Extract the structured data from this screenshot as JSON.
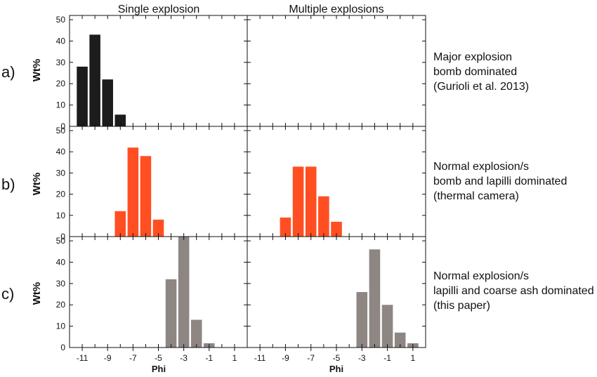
{
  "column_titles": [
    "Single explosion",
    "Multiple explosions"
  ],
  "row_labels": [
    "a)",
    "b)",
    "c)"
  ],
  "ylabel": "Wt%",
  "xlabel": "Phi",
  "descriptions": [
    [
      "Major explosion",
      "bomb dominated",
      "(Gurioli et al. 2013)"
    ],
    [
      "Normal explosion/s",
      "bomb and lapilli dominated",
      "(thermal camera)"
    ],
    [
      "Normal explosion/s",
      "lapilli and coarse ash dominated",
      "(this paper)"
    ]
  ],
  "chart_data": {
    "type": "bar",
    "xlim": [
      -12,
      2
    ],
    "ylim": [
      0,
      52
    ],
    "x_ticks": [
      -11,
      -9,
      -7,
      -5,
      -3,
      -1,
      1
    ],
    "y_ticks": [
      0,
      10,
      20,
      30,
      40,
      50
    ],
    "xlabel": "Phi",
    "ylabel": "Wt%",
    "colors": {
      "a": "#1c1c1c",
      "b": "#ff4f22",
      "c": "#8e8683"
    },
    "panels": [
      {
        "row": "a",
        "column": "Single explosion",
        "color": "#1c1c1c",
        "x": [
          -11,
          -10,
          -9,
          -8
        ],
        "values": [
          28,
          43,
          22,
          5.5
        ]
      },
      {
        "row": "a",
        "column": "Multiple explosions",
        "color": "#1c1c1c",
        "x": [],
        "values": []
      },
      {
        "row": "b",
        "column": "Single explosion",
        "color": "#ff4f22",
        "x": [
          -8,
          -7,
          -6,
          -5
        ],
        "values": [
          12,
          42,
          38,
          8
        ]
      },
      {
        "row": "b",
        "column": "Multiple explosions",
        "color": "#ff4f22",
        "x": [
          -9,
          -8,
          -7,
          -6,
          -5
        ],
        "values": [
          9,
          33,
          33,
          19,
          7
        ]
      },
      {
        "row": "c",
        "column": "Single explosion",
        "color": "#8e8683",
        "x": [
          -4,
          -3,
          -2,
          -1
        ],
        "values": [
          32,
          54,
          13,
          2
        ]
      },
      {
        "row": "c",
        "column": "Multiple explosions",
        "color": "#8e8683",
        "x": [
          -3,
          -2,
          -1,
          0,
          1
        ],
        "values": [
          26,
          46,
          20,
          7,
          2
        ]
      }
    ]
  }
}
